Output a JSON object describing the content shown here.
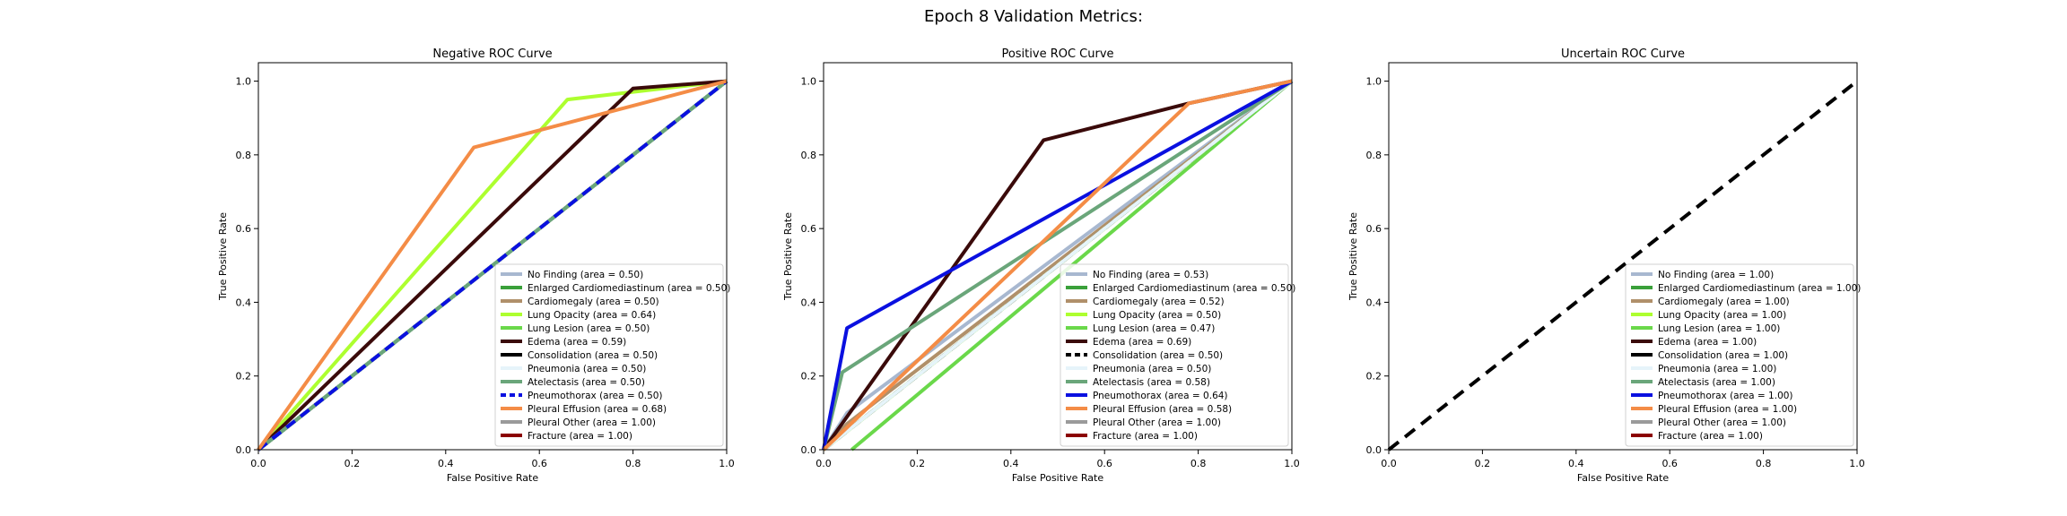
{
  "figure": {
    "title": "Epoch 8 Validation Metrics:"
  },
  "chart_data": [
    {
      "type": "line",
      "title": "Negative ROC Curve",
      "xlabel": "False Positive Rate",
      "ylabel": "True Positive Rate",
      "xlim": [
        0,
        1
      ],
      "ylim": [
        0,
        1.05
      ],
      "xticks": [
        "0.0",
        "0.2",
        "0.4",
        "0.6",
        "0.8",
        "1.0"
      ],
      "yticks": [
        "0.0",
        "0.2",
        "0.4",
        "0.6",
        "0.8",
        "1.0"
      ],
      "legend_position": "lower-right",
      "series": [
        {
          "name": "No Finding (area = 0.50)",
          "color": "#a8b8d0",
          "x": [
            0,
            1
          ],
          "y": [
            0,
            1
          ]
        },
        {
          "name": "Enlarged Cardiomediastinum (area = 0.50)",
          "color": "#3aa03a",
          "x": [
            0,
            1
          ],
          "y": [
            0,
            1
          ]
        },
        {
          "name": "Cardiomegaly (area = 0.50)",
          "color": "#b0906a",
          "x": [
            0,
            1
          ],
          "y": [
            0,
            1
          ]
        },
        {
          "name": "Lung Opacity (area = 0.64)",
          "color": "#adff2f",
          "x": [
            0,
            0.66,
            1
          ],
          "y": [
            0,
            0.95,
            1
          ]
        },
        {
          "name": "Lung Lesion (area = 0.50)",
          "color": "#6ad84a",
          "x": [
            0,
            1
          ],
          "y": [
            0,
            1
          ]
        },
        {
          "name": "Edema (area = 0.59)",
          "color": "#3a0a0a",
          "x": [
            0,
            0.8,
            1
          ],
          "y": [
            0,
            0.98,
            1
          ]
        },
        {
          "name": "Consolidation (area = 0.50)",
          "color": "#000000",
          "x": [
            0,
            1
          ],
          "y": [
            0,
            1
          ]
        },
        {
          "name": "Pneumonia (area = 0.50)",
          "color": "#e6f4fa",
          "x": [
            0,
            1
          ],
          "y": [
            0,
            1
          ]
        },
        {
          "name": "Atelectasis (area = 0.50)",
          "color": "#6aa67a",
          "x": [
            0,
            1
          ],
          "y": [
            0,
            1
          ]
        },
        {
          "name": "Pneumothorax (area = 0.50)",
          "color": "#0a10e0",
          "x": [
            0,
            1
          ],
          "y": [
            0,
            1
          ],
          "dashed": true
        },
        {
          "name": "Pleural Effusion (area = 0.68)",
          "color": "#f48c46",
          "x": [
            0,
            0.46,
            1
          ],
          "y": [
            0,
            0.82,
            1
          ]
        },
        {
          "name": "Pleural Other (area = 1.00)",
          "color": "#9a9a9a",
          "x": [
            0,
            0,
            1
          ],
          "y": [
            0,
            1,
            1
          ],
          "hidden": true
        },
        {
          "name": "Fracture (area = 1.00)",
          "color": "#8b0000",
          "x": [
            0,
            0,
            1
          ],
          "y": [
            0,
            1,
            1
          ],
          "hidden": true
        }
      ]
    },
    {
      "type": "line",
      "title": "Positive ROC Curve",
      "xlabel": "False Positive Rate",
      "ylabel": "True Positive Rate",
      "xlim": [
        0,
        1
      ],
      "ylim": [
        0,
        1.05
      ],
      "xticks": [
        "0.0",
        "0.2",
        "0.4",
        "0.6",
        "0.8",
        "1.0"
      ],
      "yticks": [
        "0.0",
        "0.2",
        "0.4",
        "0.6",
        "0.8",
        "1.0"
      ],
      "legend_position": "lower-right",
      "series": [
        {
          "name": "No Finding (area = 0.53)",
          "color": "#a8b8d0",
          "x": [
            0,
            0.05,
            1
          ],
          "y": [
            0,
            0.1,
            1
          ]
        },
        {
          "name": "Enlarged Cardiomediastinum (area = 0.50)",
          "color": "#3aa03a",
          "x": [
            0,
            1
          ],
          "y": [
            0,
            1
          ]
        },
        {
          "name": "Cardiomegaly (area = 0.52)",
          "color": "#b0906a",
          "x": [
            0,
            0.05,
            1
          ],
          "y": [
            0,
            0.07,
            1
          ]
        },
        {
          "name": "Lung Opacity (area = 0.50)",
          "color": "#adff2f",
          "x": [
            0,
            1
          ],
          "y": [
            0,
            1
          ]
        },
        {
          "name": "Lung Lesion (area = 0.47)",
          "color": "#6ad84a",
          "x": [
            0.06,
            1
          ],
          "y": [
            0,
            1
          ]
        },
        {
          "name": "Edema (area = 0.69)",
          "color": "#3a0a0a",
          "x": [
            0,
            0.47,
            0.78,
            1
          ],
          "y": [
            0,
            0.84,
            0.94,
            1
          ]
        },
        {
          "name": "Consolidation (area = 0.50)",
          "color": "#000000",
          "x": [
            0,
            1
          ],
          "y": [
            0,
            1
          ],
          "dashed": true
        },
        {
          "name": "Pneumonia (area = 0.50)",
          "color": "#e6f4fa",
          "x": [
            0,
            1
          ],
          "y": [
            0,
            1
          ]
        },
        {
          "name": "Atelectasis (area = 0.58)",
          "color": "#6aa67a",
          "x": [
            0,
            0.04,
            1
          ],
          "y": [
            0,
            0.21,
            1
          ]
        },
        {
          "name": "Pneumothorax (area = 0.64)",
          "color": "#0a10e0",
          "x": [
            0,
            0.05,
            1
          ],
          "y": [
            0,
            0.33,
            1
          ]
        },
        {
          "name": "Pleural Effusion (area = 0.58)",
          "color": "#f48c46",
          "x": [
            0,
            0.78,
            1
          ],
          "y": [
            0,
            0.94,
            1
          ]
        },
        {
          "name": "Pleural Other (area = 1.00)",
          "color": "#9a9a9a",
          "x": [
            0,
            0,
            1
          ],
          "y": [
            0,
            1,
            1
          ],
          "hidden": true
        },
        {
          "name": "Fracture (area = 1.00)",
          "color": "#8b0000",
          "x": [
            0,
            0,
            1
          ],
          "y": [
            0,
            1,
            1
          ],
          "hidden": true
        }
      ]
    },
    {
      "type": "line",
      "title": "Uncertain ROC Curve",
      "xlabel": "False Positive Rate",
      "ylabel": "True Positive Rate",
      "xlim": [
        0,
        1
      ],
      "ylim": [
        0,
        1.05
      ],
      "xticks": [
        "0.0",
        "0.2",
        "0.4",
        "0.6",
        "0.8",
        "1.0"
      ],
      "yticks": [
        "0.0",
        "0.2",
        "0.4",
        "0.6",
        "0.8",
        "1.0"
      ],
      "legend_position": "lower-right",
      "series": [
        {
          "name": "No Finding (area = 1.00)",
          "color": "#a8b8d0",
          "x": [
            0,
            0,
            1
          ],
          "y": [
            0,
            1,
            1
          ],
          "hidden": true
        },
        {
          "name": "Enlarged Cardiomediastinum (area = 1.00)",
          "color": "#3aa03a",
          "x": [
            0,
            0,
            1
          ],
          "y": [
            0,
            1,
            1
          ],
          "hidden": true
        },
        {
          "name": "Cardiomegaly (area = 1.00)",
          "color": "#b0906a",
          "x": [
            0,
            0,
            1
          ],
          "y": [
            0,
            1,
            1
          ],
          "hidden": true
        },
        {
          "name": "Lung Opacity (area = 1.00)",
          "color": "#adff2f",
          "x": [
            0,
            0,
            1
          ],
          "y": [
            0,
            1,
            1
          ],
          "hidden": true
        },
        {
          "name": "Lung Lesion (area = 1.00)",
          "color": "#6ad84a",
          "x": [
            0,
            0,
            1
          ],
          "y": [
            0,
            1,
            1
          ],
          "hidden": true
        },
        {
          "name": "Edema (area = 1.00)",
          "color": "#3a0a0a",
          "x": [
            0,
            0,
            1
          ],
          "y": [
            0,
            1,
            1
          ],
          "hidden": true
        },
        {
          "name": "Consolidation (area = 1.00)",
          "color": "#000000",
          "x": [
            0,
            0,
            1
          ],
          "y": [
            0,
            1,
            1
          ],
          "hidden": true
        },
        {
          "name": "Pneumonia (area = 1.00)",
          "color": "#e6f4fa",
          "x": [
            0,
            0,
            1
          ],
          "y": [
            0,
            1,
            1
          ],
          "hidden": true
        },
        {
          "name": "Atelectasis (area = 1.00)",
          "color": "#6aa67a",
          "x": [
            0,
            0,
            1
          ],
          "y": [
            0,
            1,
            1
          ],
          "hidden": true
        },
        {
          "name": "Pneumothorax (area = 1.00)",
          "color": "#0a10e0",
          "x": [
            0,
            0,
            1
          ],
          "y": [
            0,
            1,
            1
          ],
          "hidden": true
        },
        {
          "name": "Pleural Effusion (area = 1.00)",
          "color": "#f48c46",
          "x": [
            0,
            0,
            1
          ],
          "y": [
            0,
            1,
            1
          ],
          "hidden": true
        },
        {
          "name": "Pleural Other (area = 1.00)",
          "color": "#9a9a9a",
          "x": [
            0,
            0,
            1
          ],
          "y": [
            0,
            1,
            1
          ],
          "hidden": true
        },
        {
          "name": "Fracture (area = 1.00)",
          "color": "#8b0000",
          "x": [
            0,
            0,
            1
          ],
          "y": [
            0,
            1,
            1
          ],
          "hidden": true
        }
      ],
      "reference_line": {
        "color": "#000000",
        "dashed": true,
        "x": [
          0,
          1
        ],
        "y": [
          0,
          1
        ]
      }
    }
  ]
}
